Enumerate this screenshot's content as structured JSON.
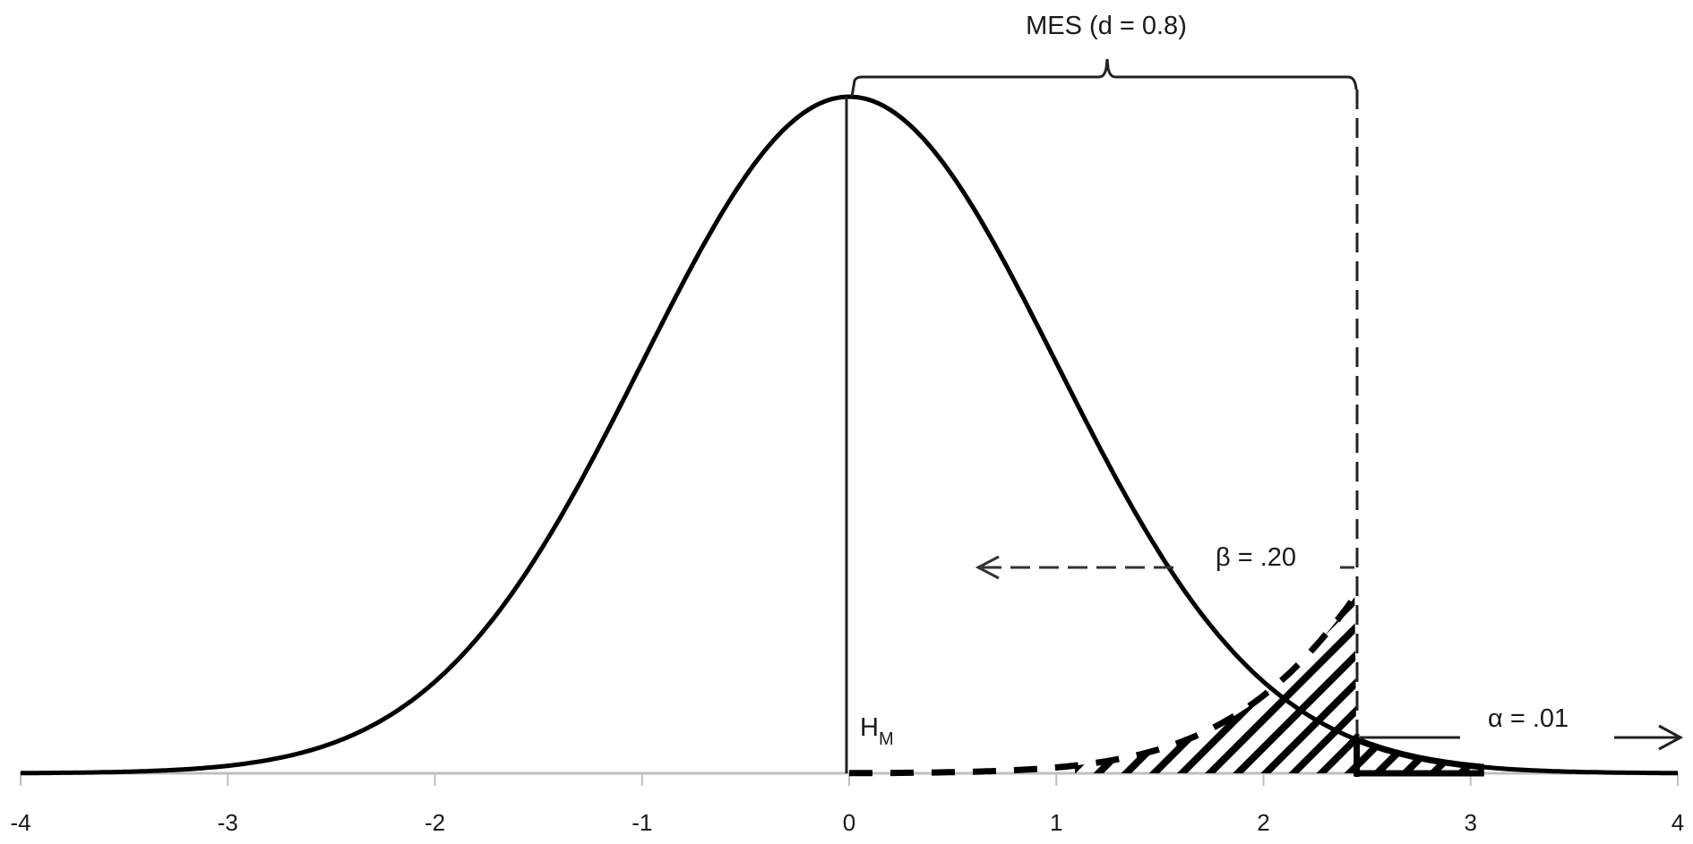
{
  "chart_data": {
    "type": "line",
    "title": "",
    "xlabel": "",
    "ylabel": "",
    "xlim": [
      -4,
      4
    ],
    "x_ticks": [
      -4,
      -3,
      -2,
      -1,
      0,
      1,
      2,
      3,
      4
    ],
    "x_tick_labels": [
      "-4",
      "-3",
      "-2",
      "-1",
      "0",
      "1",
      "2",
      "3",
      "4"
    ],
    "grid": false,
    "legend": null,
    "series": [
      {
        "name": "null distribution (H_M)",
        "style": "solid",
        "distribution": "normal",
        "mean": 0,
        "sd": 1,
        "x": [
          -4,
          -3,
          -2,
          -1,
          0,
          1,
          2,
          3,
          4
        ],
        "values": [
          0.0001,
          0.0044,
          0.054,
          0.242,
          0.399,
          0.242,
          0.054,
          0.0044,
          0.0001
        ]
      },
      {
        "name": "alternative distribution tail (beta region)",
        "style": "dashed",
        "x": [
          0,
          0.5,
          1,
          1.5,
          2,
          2.45
        ],
        "values": [
          0.0001,
          0.0004,
          0.003,
          0.013,
          0.046,
          0.105
        ]
      }
    ],
    "critical_value": 2.45,
    "shaded_regions": [
      {
        "name": "beta",
        "from": 1.2,
        "to": 2.45,
        "pattern": "diagonal-hatch",
        "label": "β = .20"
      },
      {
        "name": "alpha",
        "from": 2.45,
        "to": 3.05,
        "pattern": "diagonal-hatch",
        "label": "α = .01"
      }
    ],
    "annotations": {
      "mes_label": "MES (d = 0.8)",
      "beta_label": "β = .20",
      "alpha_label": "α = .01",
      "h_label": "H",
      "h_subscript": "M"
    }
  },
  "axis": {
    "ticks": [
      {
        "label": "-4"
      },
      {
        "label": "-3"
      },
      {
        "label": "-2"
      },
      {
        "label": "-1"
      },
      {
        "label": "0"
      },
      {
        "label": "1"
      },
      {
        "label": "2"
      },
      {
        "label": "3"
      },
      {
        "label": "4"
      }
    ]
  },
  "colors": {
    "line": "#000000",
    "axis": "#bfbfbf",
    "text": "#1a1a1a",
    "background": "#ffffff"
  }
}
